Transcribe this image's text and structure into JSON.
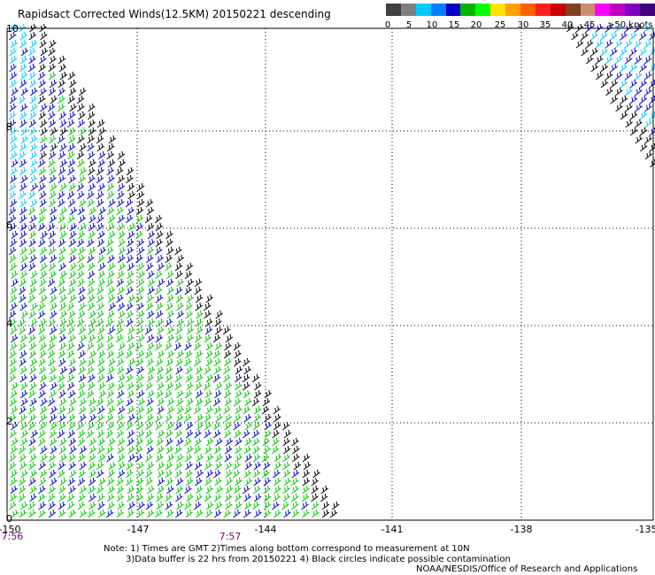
{
  "title": "Rapidsact Corrected Winds(12.5KM) 20150221 descending",
  "legend": {
    "labels": [
      "0",
      "5",
      "10",
      "15",
      "20",
      "25",
      "30",
      "35",
      "40",
      "45"
    ],
    "unit_label": ">50 knots",
    "colors": [
      "#404040",
      "#808080",
      "#00c8ff",
      "#0080ff",
      "#0000c8",
      "#00b400",
      "#00ff00",
      "#ffe100",
      "#ffa000",
      "#ff6000",
      "#ff2020",
      "#c80000",
      "#804020",
      "#c89070",
      "#ff00ff",
      "#c000c0",
      "#8000c0",
      "#400080"
    ]
  },
  "axes": {
    "x_ticks": [
      "-150",
      "-147",
      "-144",
      "-141",
      "-138",
      "-135"
    ],
    "y_ticks": [
      "10",
      "8",
      "6",
      "4",
      "2",
      "0"
    ],
    "time_labels": [
      "7:56",
      "7:57"
    ]
  },
  "notes": {
    "line1": "Note: 1) Times are GMT 2)Times along bottom correspond to measurement at 10N",
    "line2": "3)Data buffer is 22 hrs from 20150221 4) Black circles indicate possible contamination",
    "credit": "NOAA/NESDIS/Office of Research and Applications"
  },
  "wind_colors": {
    "calm_light": "#00c8ff",
    "moderate": "#0000c8",
    "fresh": "#00c800",
    "edge": "#000000"
  }
}
